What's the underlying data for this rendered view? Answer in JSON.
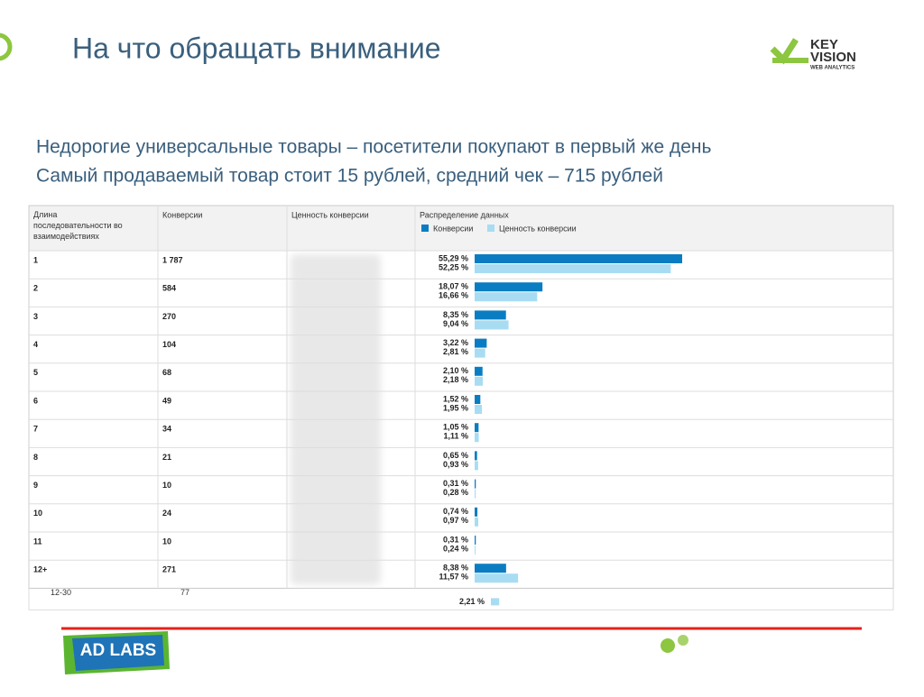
{
  "header": {
    "title": "На что обращать внимание"
  },
  "logo": {
    "line1": "KEY",
    "line2": "VISION",
    "line3": "WEB ANALYTICS"
  },
  "intro": [
    "Недорогие универсальные товары – посетители покупают в первый же день",
    "Самый продаваемый товар стоит 15 рублей, средний чек – 715 рублей"
  ],
  "table": {
    "columns": [
      "Длина последовательности во взаимодействиях",
      "Конверсии",
      "Ценность конверсии",
      "Распределение данных"
    ],
    "legend": [
      "Конверсии",
      "Ценность конверсии"
    ],
    "rows": [
      {
        "length": "1",
        "conversions": "1 787",
        "conv_share": {
          "value": 55.29,
          "label": "55,29 %"
        },
        "value_share": {
          "value": 52.25,
          "label": "52,25 %"
        }
      },
      {
        "length": "2",
        "conversions": "584",
        "conv_share": {
          "value": 18.07,
          "label": "18,07 %"
        },
        "value_share": {
          "value": 16.66,
          "label": "16,66 %"
        }
      },
      {
        "length": "3",
        "conversions": "270",
        "conv_share": {
          "value": 8.35,
          "label": "8,35 %"
        },
        "value_share": {
          "value": 9.04,
          "label": "9,04 %"
        }
      },
      {
        "length": "4",
        "conversions": "104",
        "conv_share": {
          "value": 3.22,
          "label": "3,22 %"
        },
        "value_share": {
          "value": 2.81,
          "label": "2,81 %"
        }
      },
      {
        "length": "5",
        "conversions": "68",
        "conv_share": {
          "value": 2.1,
          "label": "2,10 %"
        },
        "value_share": {
          "value": 2.18,
          "label": "2,18 %"
        }
      },
      {
        "length": "6",
        "conversions": "49",
        "conv_share": {
          "value": 1.52,
          "label": "1,52 %"
        },
        "value_share": {
          "value": 1.95,
          "label": "1,95 %"
        }
      },
      {
        "length": "7",
        "conversions": "34",
        "conv_share": {
          "value": 1.05,
          "label": "1,05 %"
        },
        "value_share": {
          "value": 1.11,
          "label": "1,11 %"
        }
      },
      {
        "length": "8",
        "conversions": "21",
        "conv_share": {
          "value": 0.65,
          "label": "0,65 %"
        },
        "value_share": {
          "value": 0.93,
          "label": "0,93 %"
        }
      },
      {
        "length": "9",
        "conversions": "10",
        "conv_share": {
          "value": 0.31,
          "label": "0,31 %"
        },
        "value_share": {
          "value": 0.28,
          "label": "0,28 %"
        }
      },
      {
        "length": "10",
        "conversions": "24",
        "conv_share": {
          "value": 0.74,
          "label": "0,74 %"
        },
        "value_share": {
          "value": 0.97,
          "label": "0,97 %"
        }
      },
      {
        "length": "11",
        "conversions": "10",
        "conv_share": {
          "value": 0.31,
          "label": "0,31 %"
        },
        "value_share": {
          "value": 0.24,
          "label": "0,24 %"
        }
      },
      {
        "length": "12+",
        "conversions": "271",
        "conv_share": {
          "value": 8.38,
          "label": "8,38 %"
        },
        "value_share": {
          "value": 11.57,
          "label": "11,57 %"
        }
      }
    ],
    "partial_row": {
      "length": "12-30",
      "conversions": "77",
      "value_share": {
        "value": 2.21,
        "label": "2,21 %"
      }
    }
  },
  "footer": {
    "logo": "AD LABS"
  }
}
